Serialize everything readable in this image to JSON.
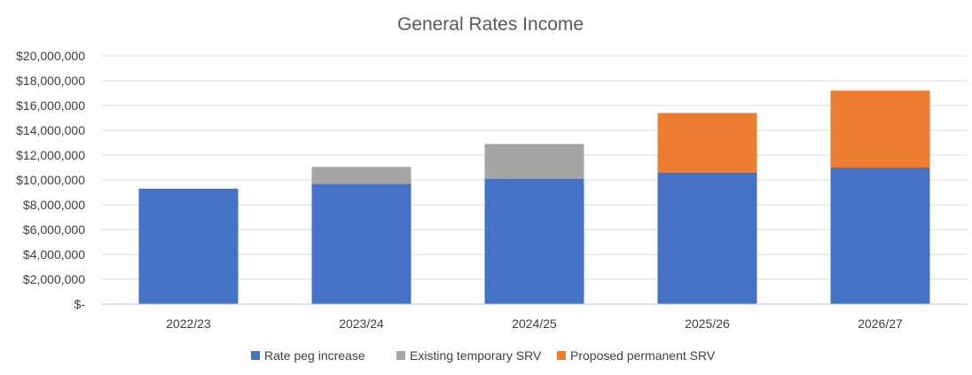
{
  "chart_data": {
    "type": "bar",
    "stacked": true,
    "title": "General  Rates Income",
    "xlabel": "",
    "ylabel": "",
    "categories": [
      "2022/23",
      "2023/24",
      "2024/25",
      "2025/26",
      "2026/27"
    ],
    "series": [
      {
        "name": "Rate peg increase",
        "color": "#4472c4",
        "values": [
          9300000,
          9700000,
          10100000,
          10600000,
          11000000
        ]
      },
      {
        "name": "Existing temporary SRV",
        "color": "#a5a5a5",
        "values": [
          0,
          1350000,
          2800000,
          0,
          0
        ]
      },
      {
        "name": "Proposed permanent SRV",
        "color": "#ed7d31",
        "values": [
          0,
          0,
          0,
          4800000,
          6200000
        ]
      }
    ],
    "ylim": [
      0,
      20000000
    ],
    "yticks": [
      0,
      2000000,
      4000000,
      6000000,
      8000000,
      10000000,
      12000000,
      14000000,
      16000000,
      18000000,
      20000000
    ],
    "ytick_labels": [
      "$-",
      "$2,000,000",
      "$4,000,000",
      "$6,000,000",
      "$8,000,000",
      "$10,000,000",
      "$12,000,000",
      "$14,000,000",
      "$16,000,000",
      "$18,000,000",
      "$20,000,000"
    ],
    "grid": true,
    "legend_position": "bottom"
  }
}
